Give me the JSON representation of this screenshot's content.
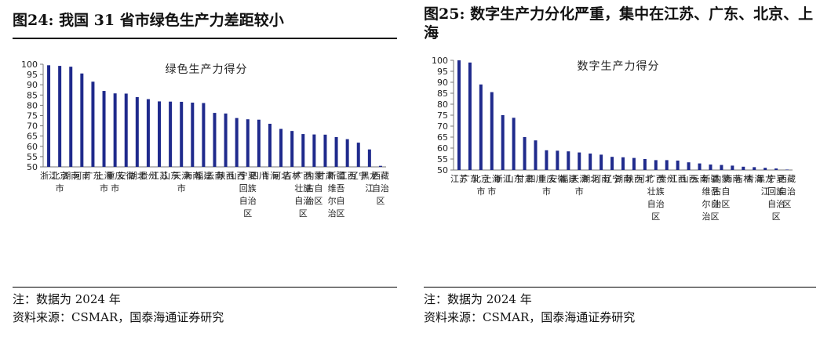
{
  "panels": [
    {
      "figure_title": "图24:  我国 31 省市绿色生产力差距较小",
      "note": "注：数据为 2024 年",
      "source": "资料来源：CSMAR，国泰海通证券研究",
      "chart_data": {
        "type": "bar",
        "title": "绿色生产力得分",
        "xlabel": "",
        "ylabel": "",
        "ylim": [
          50,
          100
        ],
        "yticks": [
          50,
          55,
          60,
          65,
          70,
          75,
          80,
          85,
          90,
          95,
          100
        ],
        "grid": false,
        "legend": "none",
        "bar_color": "#1f2a8c",
        "categories": [
          "浙江",
          "北京市",
          "湖南",
          "河南",
          "广东",
          "上海市",
          "重庆市",
          "安徽",
          "湖北",
          "贵州",
          "江苏",
          "山东",
          "天津市",
          "海南",
          "福建",
          "云南",
          "陕西",
          "山西",
          "宁夏回族自治区",
          "四川",
          "青海",
          "河北",
          "吉林",
          "广西壮族自治区",
          "内蒙古自治区",
          "甘肃",
          "新疆维吾尔自治区",
          "江西",
          "辽宁",
          "黑龙江",
          "西藏自治区"
        ],
        "values": [
          99.5,
          99.2,
          98.8,
          95.5,
          91.5,
          87,
          85.8,
          85.7,
          84,
          83,
          81.9,
          81.8,
          81.7,
          81.3,
          81.1,
          76.3,
          76,
          73.8,
          73.2,
          73,
          71,
          68.5,
          67.5,
          66,
          65.8,
          65.7,
          64.5,
          63.5,
          61.8,
          58.5,
          50.5
        ]
      }
    },
    {
      "figure_title": "图25:  数字生产力分化严重，集中在江苏、广东、北京、上海",
      "note": "注：数据为 2024 年",
      "source": "资料来源：CSMAR，国泰海通证券研究",
      "chart_data": {
        "type": "bar",
        "title": "数字生产力得分",
        "xlabel": "",
        "ylabel": "",
        "ylim": [
          50,
          100
        ],
        "yticks": [
          50,
          55,
          60,
          65,
          70,
          75,
          80,
          85,
          90,
          95,
          100
        ],
        "grid": false,
        "legend": "none",
        "bar_color": "#1f2a8c",
        "categories": [
          "江苏",
          "广东",
          "北京市",
          "上海市",
          "浙江",
          "山东",
          "甘肃",
          "四川",
          "重庆市",
          "安徽",
          "福建",
          "天津市",
          "湖北",
          "河南",
          "辽宁",
          "湖南",
          "陕西",
          "河北",
          "广西壮族自治区",
          "贵州",
          "江西",
          "山西",
          "云南",
          "新疆维吾尔自治区",
          "内蒙古自治区",
          "海南",
          "吉林",
          "青海",
          "黑龙江",
          "宁夏回族自治区",
          "西藏自治区"
        ],
        "values": [
          100,
          99,
          89,
          85.5,
          75,
          73.8,
          65,
          63.5,
          59,
          58.8,
          58.5,
          58,
          57.5,
          57,
          56,
          55.8,
          55.5,
          55,
          54.5,
          54.5,
          54.3,
          53.5,
          53,
          52.5,
          52.3,
          52,
          51.5,
          51.3,
          51,
          50.7,
          50.2
        ]
      }
    }
  ]
}
